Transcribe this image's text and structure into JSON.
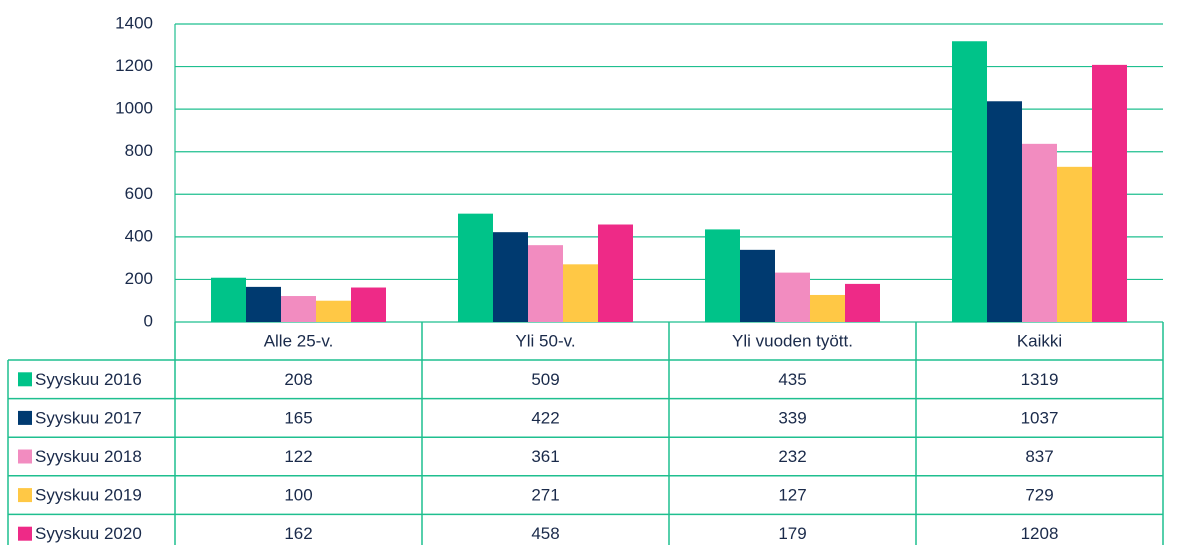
{
  "chart_data": {
    "type": "bar",
    "categories": [
      "Alle 25-v.",
      "Yli 50-v.",
      "Yli vuoden tyött.",
      "Kaikki"
    ],
    "series": [
      {
        "name": "Syyskuu 2016",
        "color": "#00c389",
        "values": [
          208,
          509,
          435,
          1319
        ]
      },
      {
        "name": "Syyskuu 2017",
        "color": "#003a70",
        "values": [
          165,
          422,
          339,
          1037
        ]
      },
      {
        "name": "Syyskuu 2018",
        "color": "#f28cc0",
        "values": [
          122,
          361,
          232,
          837
        ]
      },
      {
        "name": "Syyskuu 2019",
        "color": "#ffc845",
        "values": [
          100,
          271,
          127,
          729
        ]
      },
      {
        "name": "Syyskuu 2020",
        "color": "#ee2a87",
        "values": [
          162,
          458,
          179,
          1208
        ]
      }
    ],
    "ylim": [
      0,
      1400
    ],
    "yticks": [
      0,
      200,
      400,
      600,
      800,
      1000,
      1200,
      1400
    ],
    "grid": true
  }
}
